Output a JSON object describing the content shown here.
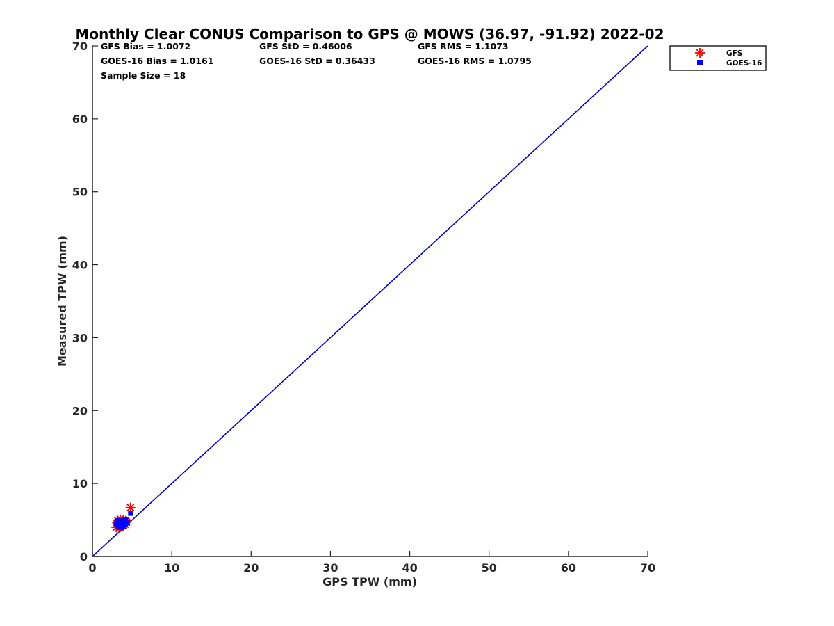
{
  "chart_data": {
    "type": "scatter",
    "title": "Monthly Clear CONUS Comparison to GPS @ MOWS (36.97, -91.92) 2022-02",
    "xlabel": "GPS TPW (mm)",
    "ylabel": "Measured TPW (mm)",
    "xlim": [
      0,
      70
    ],
    "ylim": [
      0,
      70
    ],
    "x_ticks": [
      0,
      10,
      20,
      30,
      40,
      50,
      60,
      70
    ],
    "y_ticks": [
      0,
      10,
      20,
      30,
      40,
      50,
      60,
      70
    ],
    "grid": false,
    "legend_position": "top-right outside plot",
    "stats": [
      [
        "GFS Bias = 1.0072",
        "GFS StD = 0.46006",
        "GFS RMS = 1.1073"
      ],
      [
        "GOES-16 Bias = 1.0161",
        "GOES-16 StD = 0.36433",
        "GOES-16 RMS = 1.0795"
      ],
      [
        "Sample Size = 18"
      ]
    ],
    "reference_line": {
      "x": [
        0,
        70
      ],
      "y": [
        0,
        70
      ],
      "color": "#0000cc"
    },
    "series": [
      {
        "name": "GFS",
        "marker": "asterisk",
        "color": "#ff0000",
        "points": [
          [
            3.0,
            4.0
          ],
          [
            3.1,
            4.6
          ],
          [
            3.2,
            4.9
          ],
          [
            3.3,
            4.3
          ],
          [
            3.4,
            4.1
          ],
          [
            3.5,
            5.1
          ],
          [
            3.6,
            4.5
          ],
          [
            3.7,
            4.8
          ],
          [
            3.8,
            4.2
          ],
          [
            3.9,
            5.0
          ],
          [
            4.0,
            4.6
          ],
          [
            4.1,
            4.4
          ],
          [
            4.2,
            4.9
          ],
          [
            3.3,
            4.7
          ],
          [
            3.5,
            4.0
          ],
          [
            3.9,
            4.3
          ],
          [
            4.3,
            4.7
          ],
          [
            4.8,
            6.7
          ]
        ]
      },
      {
        "name": "GOES-16",
        "marker": "square",
        "color": "#0000ff",
        "points": [
          [
            3.0,
            4.5
          ],
          [
            3.1,
            4.9
          ],
          [
            3.2,
            4.2
          ],
          [
            3.3,
            4.6
          ],
          [
            3.4,
            4.0
          ],
          [
            3.5,
            4.8
          ],
          [
            3.6,
            4.3
          ],
          [
            3.7,
            4.6
          ],
          [
            3.8,
            4.9
          ],
          [
            3.9,
            4.1
          ],
          [
            4.0,
            4.7
          ],
          [
            4.1,
            4.4
          ],
          [
            4.2,
            5.0
          ],
          [
            3.4,
            4.4
          ],
          [
            3.6,
            4.0
          ],
          [
            3.8,
            4.5
          ],
          [
            4.4,
            4.6
          ],
          [
            4.8,
            5.9
          ]
        ]
      }
    ]
  }
}
